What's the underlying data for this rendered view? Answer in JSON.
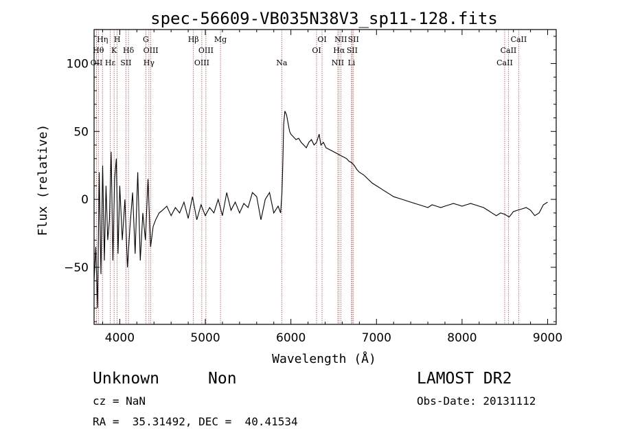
{
  "chart_data": {
    "type": "line",
    "title": "spec-56609-VB035N38V3_sp11-128.fits",
    "xlabel": "Wavelength (Å)",
    "ylabel": "Flux (relative)",
    "xlim": [
      3700,
      9100
    ],
    "ylim": [
      -92,
      125
    ],
    "x_ticks": [
      4000,
      5000,
      6000,
      7000,
      8000,
      9000
    ],
    "x_tick_labels": [
      "4000",
      "5000",
      "6000",
      "7000",
      "8000",
      "9000"
    ],
    "y_ticks": [
      -50,
      0,
      50,
      100
    ],
    "y_tick_labels": [
      "−50",
      "0",
      "50",
      "100"
    ],
    "grid": false,
    "series": [
      {
        "x": [
          3700,
          3720,
          3740,
          3760,
          3780,
          3800,
          3820,
          3840,
          3860,
          3880,
          3900,
          3920,
          3940,
          3960,
          3980,
          4000,
          4030,
          4060,
          4090,
          4120,
          4150,
          4180,
          4210,
          4240,
          4270,
          4300,
          4330,
          4360,
          4390,
          4420,
          4460,
          4500,
          4550,
          4600,
          4650,
          4700,
          4750,
          4800,
          4850,
          4900,
          4950,
          5000,
          5050,
          5100,
          5150,
          5200,
          5250,
          5300,
          5350,
          5400,
          5450,
          5500,
          5550,
          5600,
          5650,
          5700,
          5750,
          5800,
          5850,
          5880,
          5895,
          5905,
          5915,
          5930,
          5950,
          5970,
          5985,
          6000,
          6030,
          6060,
          6090,
          6120,
          6150,
          6180,
          6210,
          6240,
          6270,
          6300,
          6330,
          6350,
          6380,
          6410,
          6440,
          6470,
          6500,
          6530,
          6560,
          6590,
          6620,
          6650,
          6680,
          6710,
          6740,
          6770,
          6800,
          6850,
          6900,
          6950,
          7000,
          7050,
          7100,
          7150,
          7200,
          7250,
          7300,
          7350,
          7400,
          7450,
          7500,
          7550,
          7600,
          7650,
          7700,
          7750,
          7800,
          7850,
          7900,
          7950,
          8000,
          8050,
          8100,
          8150,
          8200,
          8250,
          8300,
          8350,
          8400,
          8450,
          8500,
          8550,
          8600,
          8650,
          8700,
          8750,
          8800,
          8850,
          8900,
          8950,
          9000
        ],
        "y": [
          -60,
          -35,
          -80,
          20,
          -55,
          25,
          -45,
          10,
          -30,
          -15,
          35,
          -45,
          15,
          30,
          -40,
          10,
          -30,
          0,
          -50,
          -20,
          5,
          -40,
          20,
          -45,
          -10,
          -30,
          15,
          -35,
          -20,
          -15,
          -10,
          -8,
          -5,
          -12,
          -6,
          -10,
          -2,
          -14,
          2,
          -15,
          -4,
          -12,
          -6,
          -10,
          0,
          -12,
          5,
          -8,
          -2,
          -10,
          -3,
          -6,
          5,
          2,
          -15,
          0,
          5,
          -10,
          -5,
          -10,
          5,
          25,
          55,
          65,
          62,
          55,
          50,
          48,
          46,
          44,
          45,
          42,
          40,
          38,
          42,
          44,
          40,
          42,
          48,
          40,
          42,
          38,
          37,
          36,
          35,
          34,
          33,
          32,
          31,
          30,
          28,
          27,
          25,
          22,
          20,
          18,
          15,
          12,
          10,
          8,
          6,
          4,
          2,
          1,
          0,
          -1,
          -2,
          -3,
          -4,
          -5,
          -6,
          -4,
          -5,
          -6,
          -5,
          -4,
          -3,
          -4,
          -5,
          -4,
          -3,
          -4,
          -5,
          -6,
          -8,
          -10,
          -12,
          -10,
          -11,
          -13,
          -9,
          -8,
          -7,
          -6,
          -8,
          -12,
          -10,
          -4,
          -2
        ]
      }
    ],
    "line_marks": [
      {
        "wave": 3728,
        "label": "OII",
        "row": 3
      },
      {
        "wave": 3750,
        "label": "Hθ",
        "row": 2
      },
      {
        "wave": 3798,
        "label": "Hη",
        "row": 1
      },
      {
        "wave": 3889,
        "label": "Hε",
        "row": 3
      },
      {
        "wave": 3934,
        "label": "K",
        "row": 2
      },
      {
        "wave": 3970,
        "label": "H",
        "row": 1
      },
      {
        "wave": 4072,
        "label": "SII",
        "row": 3
      },
      {
        "wave": 4102,
        "label": "Hδ",
        "row": 2
      },
      {
        "wave": 4305,
        "label": "G",
        "row": 1
      },
      {
        "wave": 4341,
        "label": "Hγ",
        "row": 3
      },
      {
        "wave": 4363,
        "label": "OIII",
        "row": 2
      },
      {
        "wave": 4861,
        "label": "Hβ",
        "row": 1
      },
      {
        "wave": 4959,
        "label": "OIII",
        "row": 3
      },
      {
        "wave": 5007,
        "label": "OIII",
        "row": 2
      },
      {
        "wave": 5177,
        "label": "Mg",
        "row": 1
      },
      {
        "wave": 5893,
        "label": "Na",
        "row": 3
      },
      {
        "wave": 6300,
        "label": "OI",
        "row": 2
      },
      {
        "wave": 6364,
        "label": "OI",
        "row": 1
      },
      {
        "wave": 6548,
        "label": "NII",
        "row": 3
      },
      {
        "wave": 6563,
        "label": "Hα",
        "row": 2
      },
      {
        "wave": 6583,
        "label": "NII",
        "row": 1
      },
      {
        "wave": 6708,
        "label": "Li",
        "row": 3
      },
      {
        "wave": 6716,
        "label": "SII",
        "row": 2
      },
      {
        "wave": 6731,
        "label": "SII",
        "row": 1
      },
      {
        "wave": 8498,
        "label": "CaII",
        "row": 3
      },
      {
        "wave": 8542,
        "label": "CaII",
        "row": 2
      },
      {
        "wave": 8662,
        "label": "CaII",
        "row": 1
      }
    ]
  },
  "info": {
    "class": "Unknown",
    "subclass": "Non",
    "cz": "cz = NaN",
    "radec": "RA =  35.31492, DEC =  40.41534",
    "survey": "LAMOST DR2",
    "obsdate": "Obs-Date: 20131112"
  }
}
